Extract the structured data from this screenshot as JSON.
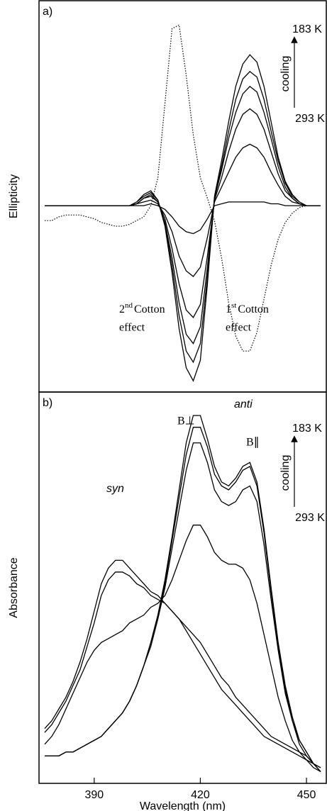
{
  "chart_data": [
    {
      "type": "line",
      "panel_label": "a)",
      "y_label": "Ellipticity",
      "arrow_labels": {
        "top": "183 K",
        "middle": "cooling",
        "bottom": "293 K"
      },
      "cotton_labels": [
        {
          "lead": "2",
          "sup": "nd",
          "rest": "Cotton",
          "line2": "effect"
        },
        {
          "lead": "1",
          "sup": "st",
          "rest": "Cotton",
          "line2": "effect"
        }
      ],
      "xlim": [
        374.4,
        455.6
      ],
      "ylim": [
        -1,
        1.1
      ],
      "x": [
        376,
        378,
        380,
        382,
        384,
        386,
        388,
        390,
        392,
        394,
        396,
        398,
        400,
        402,
        404,
        406,
        408,
        410,
        412,
        414,
        416,
        418,
        420,
        422,
        424,
        426,
        428,
        430,
        432,
        434,
        436,
        438,
        440,
        442,
        444,
        446,
        448,
        450,
        452,
        454
      ],
      "series": [
        {
          "color": "#000000",
          "style": "solid",
          "values": [
            0,
            0,
            0,
            0,
            0,
            0,
            0,
            0,
            0,
            0,
            0,
            0,
            0,
            0.02,
            0.06,
            0.08,
            0.03,
            -0.11,
            -0.36,
            -0.66,
            -0.87,
            -0.94,
            -0.83,
            -0.42,
            0.05,
            0.24,
            0.45,
            0.64,
            0.76,
            0.81,
            0.77,
            0.64,
            0.45,
            0.26,
            0.13,
            0.06,
            0.02,
            0,
            0,
            0
          ]
        },
        {
          "color": "#000000",
          "style": "solid",
          "values": [
            0,
            0,
            0,
            0,
            0,
            0,
            0,
            0,
            0,
            0,
            0,
            0,
            0,
            0.02,
            0.05,
            0.07,
            0.03,
            -0.1,
            -0.32,
            -0.59,
            -0.78,
            -0.84,
            -0.74,
            -0.38,
            0.04,
            0.21,
            0.4,
            0.57,
            0.68,
            0.72,
            0.69,
            0.57,
            0.4,
            0.24,
            0.12,
            0.05,
            0.02,
            0,
            0,
            0
          ]
        },
        {
          "color": "#000000",
          "style": "solid",
          "values": [
            0,
            0,
            0,
            0,
            0,
            0,
            0,
            0,
            0,
            0,
            0,
            0,
            0,
            0.01,
            0.04,
            0.06,
            0.02,
            -0.09,
            -0.28,
            -0.52,
            -0.69,
            -0.74,
            -0.65,
            -0.33,
            0.04,
            0.19,
            0.36,
            0.5,
            0.6,
            0.64,
            0.61,
            0.5,
            0.36,
            0.21,
            0.1,
            0.04,
            0.01,
            0,
            0,
            0
          ]
        },
        {
          "color": "#000000",
          "style": "solid",
          "values": [
            0,
            0,
            0,
            0,
            0,
            0,
            0,
            0,
            0,
            0,
            0,
            0,
            0,
            0.01,
            0.04,
            0.05,
            0.02,
            -0.07,
            -0.23,
            -0.42,
            -0.56,
            -0.6,
            -0.53,
            -0.27,
            0.03,
            0.15,
            0.29,
            0.41,
            0.49,
            0.52,
            0.49,
            0.41,
            0.29,
            0.17,
            0.08,
            0.04,
            0.01,
            0,
            0,
            0
          ]
        },
        {
          "color": "#000000",
          "style": "solid",
          "values": [
            0,
            0,
            0,
            0,
            0,
            0,
            0,
            0,
            0,
            0,
            0,
            0,
            0,
            0.01,
            0.02,
            0.03,
            0.01,
            -0.05,
            -0.14,
            -0.27,
            -0.35,
            -0.38,
            -0.33,
            -0.17,
            0.02,
            0.1,
            0.18,
            0.26,
            0.31,
            0.33,
            0.31,
            0.26,
            0.18,
            0.11,
            0.05,
            0.02,
            0.01,
            0,
            0,
            0
          ]
        },
        {
          "color": "#000000",
          "style": "solid",
          "values": [
            0,
            0,
            0,
            0,
            0,
            0,
            0,
            0,
            0,
            0,
            0,
            0,
            0,
            0,
            0,
            0.01,
            0,
            -0.02,
            -0.06,
            -0.11,
            -0.14,
            -0.15,
            -0.13,
            -0.07,
            0,
            0.01,
            0.02,
            0.02,
            0.02,
            0.02,
            0.02,
            0.02,
            0.01,
            0.01,
            0,
            0,
            0,
            0,
            0,
            0
          ]
        },
        {
          "color": "#000000",
          "style": "dotted",
          "values": [
            -0.08,
            -0.08,
            -0.06,
            -0.05,
            -0.05,
            -0.05,
            -0.06,
            -0.07,
            -0.09,
            -0.1,
            -0.11,
            -0.11,
            -0.1,
            -0.08,
            -0.06,
            0.0,
            0.15,
            0.55,
            0.95,
            0.97,
            0.7,
            0.38,
            0.15,
            0.04,
            -0.08,
            -0.28,
            -0.52,
            -0.7,
            -0.78,
            -0.78,
            -0.68,
            -0.5,
            -0.32,
            -0.18,
            -0.09,
            -0.04,
            -0.01,
            0,
            0,
            0
          ]
        }
      ]
    },
    {
      "type": "line",
      "panel_label": "b)",
      "y_label": "Absorbance",
      "x_label": "Wavelength (nm)",
      "arrow_labels": {
        "top": "183 K",
        "middle": "cooling",
        "bottom": "293 K"
      },
      "band_labels": {
        "syn": "syn",
        "anti": "anti",
        "b_perp": "B⊥",
        "b_par": "B∥"
      },
      "xlim": [
        374.4,
        455.6
      ],
      "xticks": [
        390,
        420,
        450
      ],
      "ylim": [
        0,
        1
      ],
      "x": [
        376,
        378,
        380,
        382,
        384,
        386,
        388,
        390,
        392,
        394,
        396,
        398,
        400,
        402,
        404,
        406,
        408,
        410,
        412,
        414,
        416,
        418,
        420,
        422,
        424,
        426,
        428,
        430,
        432,
        434,
        436,
        438,
        440,
        442,
        444,
        446,
        448,
        450,
        452,
        454
      ],
      "series": [
        {
          "color": "#000000",
          "style": "solid",
          "values": [
            0.14,
            0.16,
            0.19,
            0.22,
            0.26,
            0.31,
            0.37,
            0.44,
            0.51,
            0.55,
            0.57,
            0.57,
            0.55,
            0.53,
            0.51,
            0.49,
            0.48,
            0.46,
            0.44,
            0.42,
            0.39,
            0.36,
            0.33,
            0.3,
            0.27,
            0.24,
            0.22,
            0.2,
            0.18,
            0.16,
            0.14,
            0.12,
            0.11,
            0.1,
            0.09,
            0.08,
            0.07,
            0.06,
            0.05,
            0.04
          ]
        },
        {
          "color": "#000000",
          "style": "solid",
          "values": [
            0.13,
            0.15,
            0.18,
            0.21,
            0.25,
            0.29,
            0.35,
            0.41,
            0.48,
            0.52,
            0.54,
            0.54,
            0.53,
            0.51,
            0.5,
            0.48,
            0.47,
            0.46,
            0.44,
            0.42,
            0.4,
            0.38,
            0.36,
            0.33,
            0.3,
            0.27,
            0.25,
            0.22,
            0.2,
            0.18,
            0.16,
            0.14,
            0.12,
            0.11,
            0.1,
            0.09,
            0.08,
            0.07,
            0.05,
            0.04
          ]
        },
        {
          "color": "#000000",
          "style": "solid",
          "values": [
            0.1,
            0.12,
            0.15,
            0.19,
            0.23,
            0.27,
            0.31,
            0.34,
            0.36,
            0.37,
            0.38,
            0.39,
            0.41,
            0.42,
            0.43,
            0.45,
            0.46,
            0.48,
            0.52,
            0.57,
            0.62,
            0.66,
            0.66,
            0.63,
            0.59,
            0.57,
            0.56,
            0.56,
            0.55,
            0.52,
            0.46,
            0.38,
            0.3,
            0.22,
            0.16,
            0.11,
            0.08,
            0.06,
            0.04,
            0.03
          ]
        },
        {
          "color": "#000000",
          "style": "solid",
          "values": [
            0.07,
            0.07,
            0.07,
            0.08,
            0.08,
            0.09,
            0.1,
            0.11,
            0.12,
            0.14,
            0.16,
            0.18,
            0.21,
            0.25,
            0.3,
            0.35,
            0.42,
            0.5,
            0.6,
            0.7,
            0.8,
            0.87,
            0.87,
            0.82,
            0.75,
            0.72,
            0.71,
            0.72,
            0.75,
            0.76,
            0.72,
            0.61,
            0.47,
            0.34,
            0.23,
            0.16,
            0.1,
            0.07,
            0.05,
            0.03
          ]
        },
        {
          "color": "#000000",
          "style": "solid",
          "values": [
            0.07,
            0.07,
            0.07,
            0.08,
            0.08,
            0.09,
            0.1,
            0.11,
            0.12,
            0.14,
            0.16,
            0.18,
            0.21,
            0.25,
            0.3,
            0.36,
            0.43,
            0.51,
            0.62,
            0.73,
            0.84,
            0.91,
            0.91,
            0.86,
            0.79,
            0.76,
            0.75,
            0.77,
            0.8,
            0.81,
            0.76,
            0.64,
            0.49,
            0.35,
            0.24,
            0.16,
            0.11,
            0.08,
            0.05,
            0.03
          ]
        },
        {
          "color": "#000000",
          "style": "solid",
          "values": [
            0.07,
            0.07,
            0.07,
            0.08,
            0.08,
            0.09,
            0.1,
            0.11,
            0.12,
            0.14,
            0.16,
            0.18,
            0.21,
            0.25,
            0.3,
            0.36,
            0.43,
            0.52,
            0.63,
            0.75,
            0.87,
            0.94,
            0.94,
            0.88,
            0.81,
            0.77,
            0.76,
            0.78,
            0.81,
            0.82,
            0.77,
            0.65,
            0.5,
            0.36,
            0.25,
            0.17,
            0.11,
            0.08,
            0.05,
            0.03
          ]
        }
      ]
    }
  ]
}
